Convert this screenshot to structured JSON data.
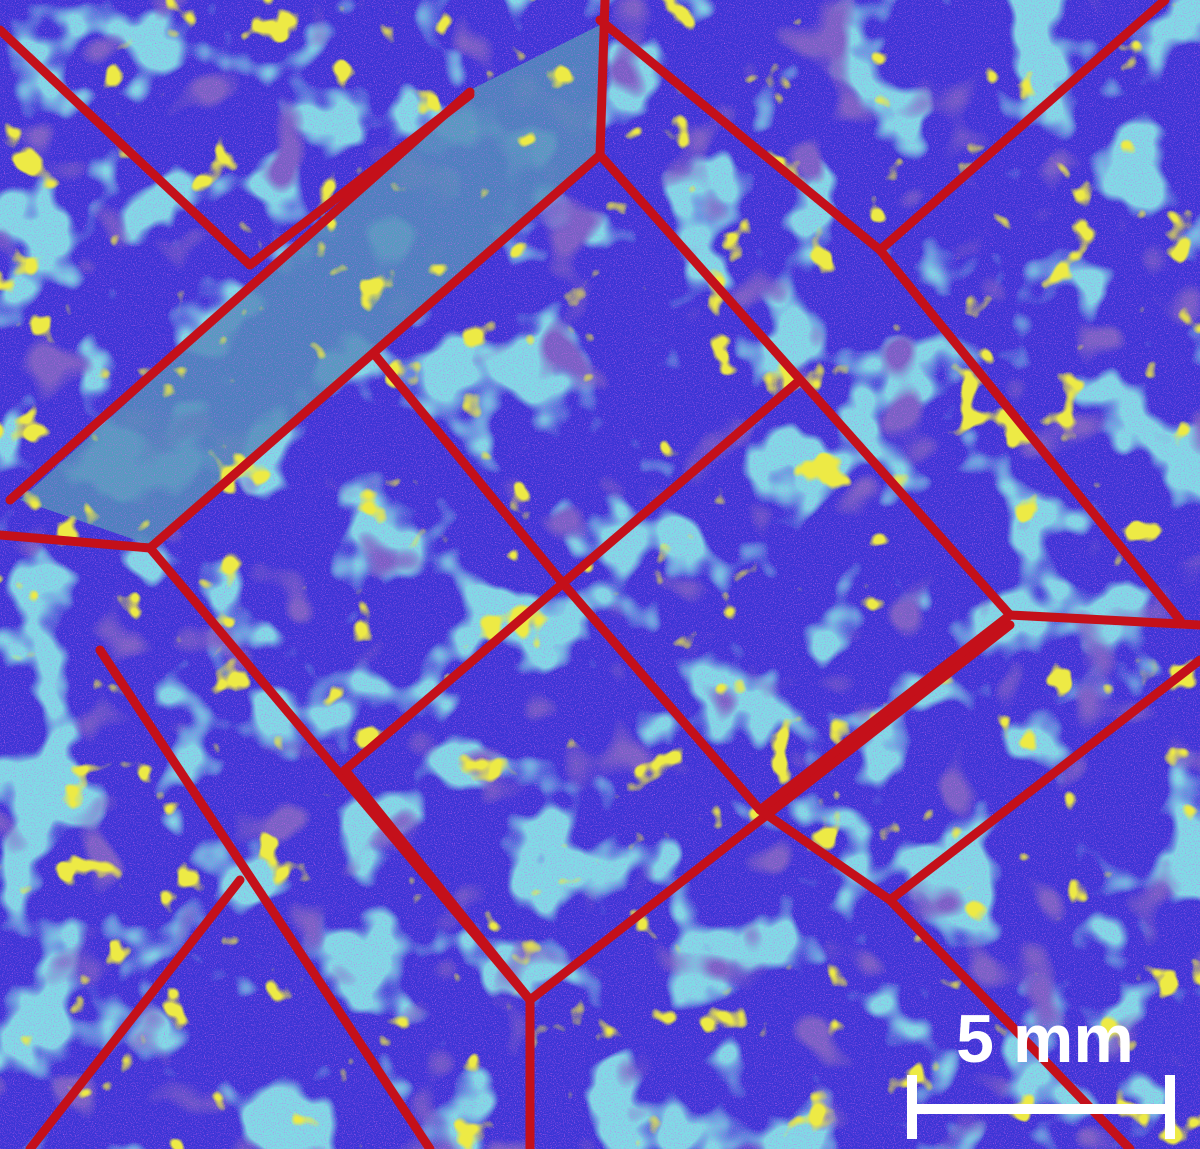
{
  "image": {
    "scale_bar": {
      "label": "5 mm"
    },
    "colors": {
      "base_blue": "#3b35d6",
      "magenta": "#b020d8",
      "cyan": "#36b8c8",
      "teal": "#4d8fb8",
      "yellow": "#d8d010",
      "green": "#40e040",
      "grain_boundary_red": "#c4101a",
      "scale_bar": "#ffffff"
    }
  }
}
